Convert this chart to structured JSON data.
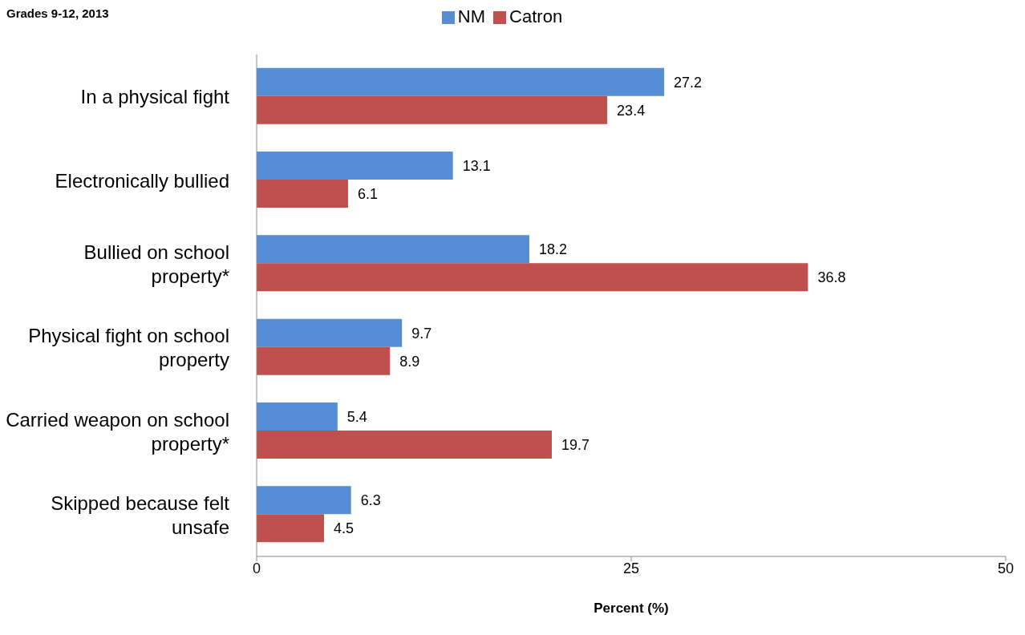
{
  "chart_data": {
    "type": "bar",
    "orientation": "horizontal",
    "title": "Grades 9-12, 2013",
    "xlabel": "Percent (%)",
    "categories": [
      "In a physical fight",
      "Electronically bullied",
      "Bullied on school property*",
      "Physical fight on school property",
      "Carried weapon on school property*",
      "Skipped because felt unsafe"
    ],
    "series": [
      {
        "name": "NM",
        "color": "#558ed5",
        "values": [
          27.2,
          13.1,
          18.2,
          9.7,
          5.4,
          6.3
        ]
      },
      {
        "name": "Catron",
        "color": "#c0504d",
        "values": [
          23.4,
          6.1,
          36.8,
          8.9,
          19.7,
          4.5
        ]
      }
    ],
    "xlim": [
      0,
      50
    ],
    "xticks": [
      0,
      25,
      50
    ],
    "data_labels": true,
    "grid": false,
    "legend": "top"
  }
}
